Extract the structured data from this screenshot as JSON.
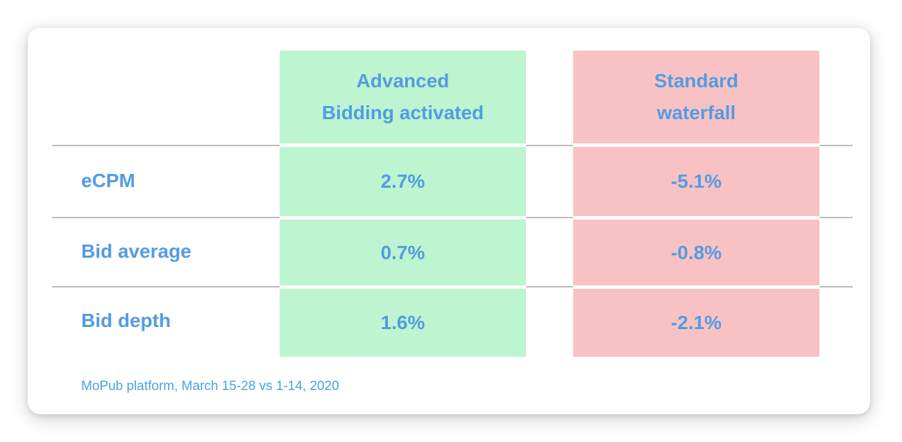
{
  "chart_data": {
    "type": "table",
    "categories": [
      "eCPM",
      "Bid average",
      "Bid depth"
    ],
    "series": [
      {
        "name": "Advanced Bidding activated",
        "values": [
          2.7,
          0.7,
          1.6
        ]
      },
      {
        "name": "Standard waterfall",
        "values": [
          -5.1,
          -0.8,
          -2.1
        ]
      }
    ],
    "value_unit": "%",
    "note": "MoPub platform, March 15-28 vs 1-14, 2020",
    "layout": "comparison table, two colored value columns (green positive, pink negative), gray row separators on white background"
  },
  "columns": {
    "advanced": {
      "line1": "Advanced",
      "line2": "Bidding activated"
    },
    "standard": {
      "line1": "Standard",
      "line2": "waterfall"
    }
  },
  "rows": [
    {
      "label": "eCPM",
      "advanced": "2.7%",
      "standard": "-5.1%"
    },
    {
      "label": "Bid average",
      "advanced": "0.7%",
      "standard": "-0.8%"
    },
    {
      "label": "Bid depth",
      "advanced": "1.6%",
      "standard": "-2.1%"
    }
  ],
  "footnote": "MoPub platform, March 15-28 vs 1-14, 2020",
  "colors": {
    "advanced_column_bg": "#bcf5cf",
    "standard_column_bg": "#f8c2c4",
    "text_blue": "#549be4",
    "footnote_blue": "#4ba1e8",
    "separator_gray": "#bcbcbc",
    "card_bg": "#ffffff"
  }
}
